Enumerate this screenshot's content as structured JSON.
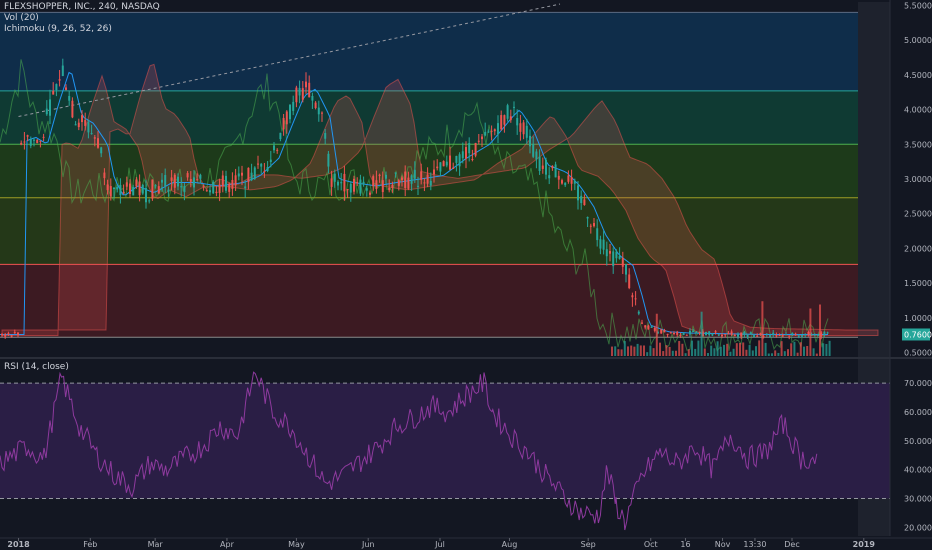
{
  "legend": {
    "main": "FLEXSHOPPER, INC., 240, NASDAQ",
    "vol": "Vol (20)",
    "ichimoku": "Ichimoku (9, 26, 52, 26)",
    "rsi": "RSI (14, close)"
  },
  "colors": {
    "background": "#131722",
    "up": "#26a69a",
    "down": "#ef5350",
    "rsi_line": "#8e3a9e",
    "rsi_band": "#2a1e45",
    "fib_blue": "#0f2d4a",
    "fib_teal": "#0f3a33",
    "fib_green": "#1d3a1a",
    "fib_olive": "#243818",
    "fib_red": "#3c1a22",
    "future_area": "#1e222d",
    "text": "#b2b5be"
  },
  "chart_data": [
    {
      "type": "candlestick",
      "title": "FLEXSHOPPER, INC., 240, NASDAQ",
      "y_axis_ticks": [
        "5.5000",
        "5.0000",
        "4.5000",
        "4.0000",
        "3.5000",
        "3.0000",
        "2.5000",
        "2.0000",
        "1.5000",
        "1.0000",
        "0.5000"
      ],
      "ylim": [
        0.45,
        5.55
      ],
      "last_price_label": "0.7600",
      "fib_levels": [
        5.4,
        4.27,
        3.5,
        2.73,
        1.77,
        0.72
      ],
      "trendline": {
        "start": [
          "2018-01-01",
          3.9
        ],
        "end": [
          "2018-04-12",
          4.6
        ]
      },
      "price_path": [
        [
          "2018-01-01",
          3.55
        ],
        [
          "2018-01-05",
          3.6
        ],
        [
          "2018-01-10",
          3.5
        ],
        [
          "2018-01-15",
          4.1
        ],
        [
          "2018-01-20",
          4.6
        ],
        [
          "2018-01-25",
          3.9
        ],
        [
          "2018-01-30",
          3.8
        ],
        [
          "2018-02-05",
          3.5
        ],
        [
          "2018-02-08",
          3.0
        ],
        [
          "2018-02-12",
          2.75
        ],
        [
          "2018-02-18",
          2.9
        ],
        [
          "2018-02-25",
          2.8
        ],
        [
          "2018-03-05",
          2.95
        ],
        [
          "2018-03-15",
          2.95
        ],
        [
          "2018-03-25",
          2.9
        ],
        [
          "2018-04-05",
          2.95
        ],
        [
          "2018-04-12",
          3.05
        ],
        [
          "2018-04-20",
          3.3
        ],
        [
          "2018-04-26",
          3.8
        ],
        [
          "2018-05-01",
          4.2
        ],
        [
          "2018-05-06",
          4.3
        ],
        [
          "2018-05-12",
          3.9
        ],
        [
          "2018-05-16",
          3.0
        ],
        [
          "2018-05-22",
          2.95
        ],
        [
          "2018-06-01",
          2.9
        ],
        [
          "2018-06-10",
          2.95
        ],
        [
          "2018-06-20",
          3.0
        ],
        [
          "2018-06-30",
          3.05
        ],
        [
          "2018-07-10",
          3.3
        ],
        [
          "2018-07-20",
          3.5
        ],
        [
          "2018-07-30",
          3.9
        ],
        [
          "2018-08-02",
          4.0
        ],
        [
          "2018-08-08",
          3.7
        ],
        [
          "2018-08-14",
          3.2
        ],
        [
          "2018-08-22",
          3.1
        ],
        [
          "2018-08-28",
          2.9
        ],
        [
          "2018-09-03",
          2.6
        ],
        [
          "2018-09-08",
          2.2
        ],
        [
          "2018-09-14",
          1.9
        ],
        [
          "2018-09-20",
          1.75
        ],
        [
          "2018-09-24",
          1.3
        ],
        [
          "2018-09-27",
          0.9
        ],
        [
          "2018-10-05",
          0.8
        ],
        [
          "2018-10-15",
          0.78
        ],
        [
          "2018-11-01",
          0.77
        ],
        [
          "2018-11-15",
          0.76
        ],
        [
          "2018-12-01",
          0.76
        ],
        [
          "2018-12-12",
          0.76
        ]
      ],
      "x_labels": [
        "2018",
        "Feb",
        "Mar",
        "Apr",
        "May",
        "Jun",
        "Jul",
        "Aug",
        "Sep",
        "Oct",
        "16",
        "Nov",
        "13:30",
        "Dec",
        "2019"
      ]
    },
    {
      "type": "line",
      "title": "RSI (14, close)",
      "y_axis_ticks": [
        "70.0000",
        "60.0000",
        "50.0000",
        "40.0000",
        "30.0000",
        "20.0000"
      ],
      "ylim": [
        17,
        78
      ],
      "bands": [
        70,
        30
      ],
      "series": [
        {
          "values": [
            [
              0.0,
              42
            ],
            [
              0.03,
              48
            ],
            [
              0.05,
              44
            ],
            [
              0.07,
              72
            ],
            [
              0.09,
              55
            ],
            [
              0.11,
              45
            ],
            [
              0.13,
              38
            ],
            [
              0.15,
              34
            ],
            [
              0.17,
              42
            ],
            [
              0.19,
              40
            ],
            [
              0.21,
              44
            ],
            [
              0.23,
              48
            ],
            [
              0.25,
              55
            ],
            [
              0.27,
              52
            ],
            [
              0.29,
              74
            ],
            [
              0.31,
              60
            ],
            [
              0.33,
              55
            ],
            [
              0.35,
              45
            ],
            [
              0.37,
              35
            ],
            [
              0.39,
              38
            ],
            [
              0.41,
              43
            ],
            [
              0.43,
              48
            ],
            [
              0.45,
              55
            ],
            [
              0.47,
              58
            ],
            [
              0.49,
              62
            ],
            [
              0.51,
              60
            ],
            [
              0.53,
              66
            ],
            [
              0.55,
              70
            ],
            [
              0.56,
              60
            ],
            [
              0.58,
              52
            ],
            [
              0.6,
              46
            ],
            [
              0.62,
              38
            ],
            [
              0.64,
              31
            ],
            [
              0.66,
              25
            ],
            [
              0.68,
              24
            ],
            [
              0.69,
              40
            ],
            [
              0.7,
              28
            ],
            [
              0.71,
              22
            ],
            [
              0.73,
              38
            ],
            [
              0.75,
              46
            ],
            [
              0.77,
              42
            ],
            [
              0.79,
              48
            ],
            [
              0.81,
              40
            ],
            [
              0.83,
              52
            ],
            [
              0.85,
              44
            ],
            [
              0.87,
              46
            ],
            [
              0.89,
              56
            ],
            [
              0.91,
              44
            ],
            [
              0.93,
              43
            ]
          ]
        }
      ]
    }
  ]
}
